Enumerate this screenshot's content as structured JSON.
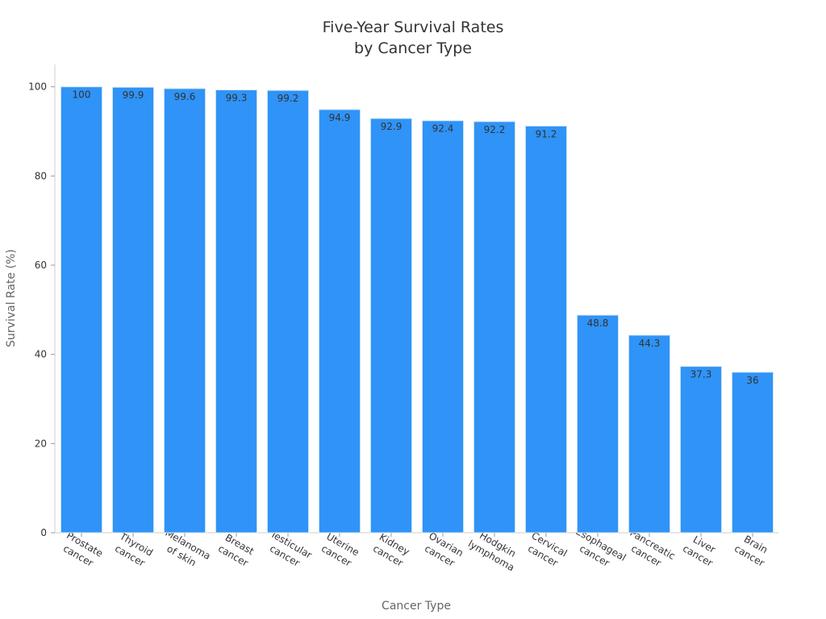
{
  "chart_data": {
    "type": "bar",
    "title": [
      "Five-Year Survival Rates",
      "by Cancer Type"
    ],
    "x_label": "Cancer Type",
    "y_label": "Survival Rate (%)",
    "categories": [
      [
        "Prostate",
        "cancer"
      ],
      [
        "Thyroid",
        "cancer"
      ],
      [
        "Melanoma",
        "of skin"
      ],
      [
        "Breast",
        "cancer"
      ],
      [
        "Testicular",
        "cancer"
      ],
      [
        "Uterine",
        "cancer"
      ],
      [
        "Kidney",
        "cancer"
      ],
      [
        "Ovarian",
        "cancer"
      ],
      [
        "Hodgkin",
        "lymphoma"
      ],
      [
        "Cervical",
        "cancer"
      ],
      [
        "Esophageal",
        "cancer"
      ],
      [
        "Pancreatic",
        "cancer"
      ],
      [
        "Liver",
        "cancer"
      ],
      [
        "Brain",
        "cancer"
      ]
    ],
    "values": [
      100,
      99.9,
      99.6,
      99.3,
      99.2,
      94.9,
      92.9,
      92.4,
      92.2,
      91.2,
      48.8,
      44.3,
      37.3,
      36
    ],
    "color": "#2f93f7",
    "ylim": [
      0,
      105
    ],
    "yticks": [
      0,
      20,
      40,
      60,
      80,
      100
    ],
    "grid": false
  }
}
